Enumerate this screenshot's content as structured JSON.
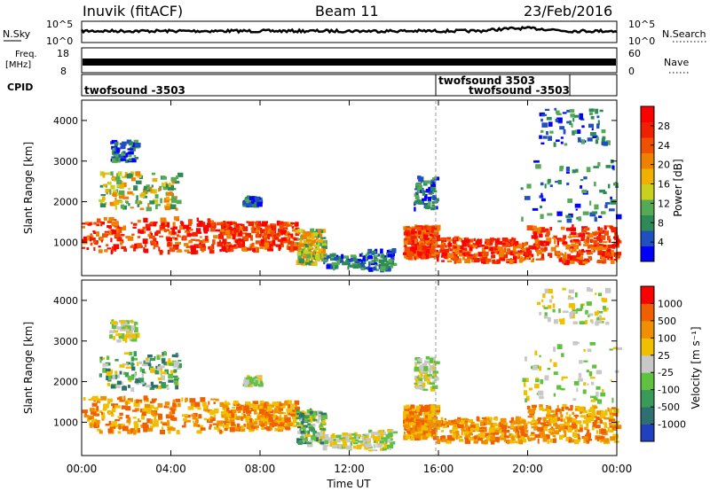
{
  "header": {
    "station": "Inuvik (fitACF)",
    "beam": "Beam 11",
    "date": "23/Feb/2016"
  },
  "panels": {
    "nsky": {
      "label": "N.Sky",
      "tick_hi": "10^5",
      "tick_lo": "10^0",
      "right_label": "N.Search",
      "r_tick_hi": "10^5",
      "r_tick_lo": "10^0"
    },
    "freq": {
      "label_1": "Freq.",
      "label_2": "[MHz]",
      "tick_hi": "18",
      "tick_lo": "8",
      "right_label": "Nave",
      "r_tick_hi": "60",
      "r_tick_lo": "0"
    },
    "cpid": {
      "label": "CPID",
      "seg1": "twofsound -3503",
      "seg2": "twofsound 3503",
      "seg3": "twofsound -3503"
    }
  },
  "colors": {
    "power_scale": [
      "#0000ff",
      "#2050c0",
      "#2e8b57",
      "#55aa55",
      "#c8d020",
      "#f0b000",
      "#f08000",
      "#f05000",
      "#f02000",
      "#ff0000"
    ],
    "velocity_scale": [
      "#2040c0",
      "#2e7070",
      "#3a9a5a",
      "#60c040",
      "#c8c8c8",
      "#f0c000",
      "#f09000",
      "#f06000",
      "#ff0000"
    ]
  },
  "chart_data": [
    {
      "type": "heatmap",
      "title": "",
      "xlabel": "Time UT",
      "ylabel": "Slant Range [km]",
      "xlim": [
        "00:00",
        "00:00"
      ],
      "ylim": [
        180,
        4500
      ],
      "x_ticks": [
        "00:00",
        "04:00",
        "08:00",
        "12:00",
        "16:00",
        "20:00",
        "00:00"
      ],
      "y_ticks": [
        1000,
        2000,
        3000,
        4000
      ],
      "colorbar": {
        "label": "Power [dB]",
        "ticks": [
          4,
          8,
          12,
          16,
          20,
          24,
          28
        ]
      }
    },
    {
      "type": "heatmap",
      "title": "",
      "xlabel": "Time UT",
      "ylabel": "Slant Range [km]",
      "xlim": [
        "00:00",
        "00:00"
      ],
      "ylim": [
        180,
        4500
      ],
      "x_ticks": [
        "00:00",
        "04:00",
        "08:00",
        "12:00",
        "16:00",
        "20:00",
        "00:00"
      ],
      "y_ticks": [
        1000,
        2000,
        3000,
        4000
      ],
      "colorbar": {
        "label": "Velocity [m s⁻¹]",
        "ticks": [
          1000,
          500,
          100,
          25,
          -25,
          -100,
          -500,
          -1000
        ]
      }
    }
  ]
}
